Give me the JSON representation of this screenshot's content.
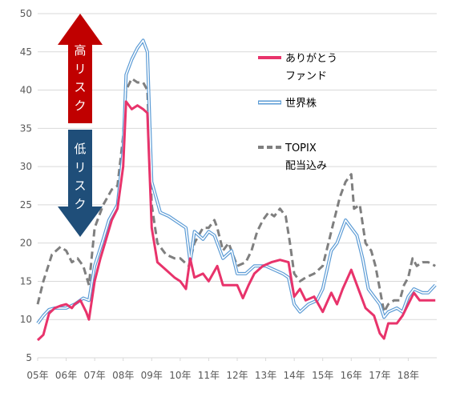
{
  "chart_data": {
    "type": "line",
    "ylim": [
      5,
      50
    ],
    "y_ticks": [
      5,
      10,
      15,
      20,
      25,
      30,
      35,
      40,
      45,
      50
    ],
    "x_tick_labels": [
      "05年",
      "06年",
      "07年",
      "08年",
      "09年",
      "10年",
      "11年",
      "12年",
      "13年",
      "14年",
      "15年",
      "16年",
      "17年",
      "18年"
    ],
    "grid": "horizontal",
    "legend_position": "right",
    "annotations": {
      "high_risk": "高リスク",
      "low_risk": "低リスク"
    },
    "series": [
      {
        "name": "ありがとうファンド",
        "legend_lines": [
          "ありがとう",
          "ファンド"
        ],
        "style": "solid",
        "color": "#e8336b",
        "points": [
          [
            2005.0,
            7.3
          ],
          [
            2005.2,
            8.0
          ],
          [
            2005.4,
            10.8
          ],
          [
            2005.6,
            11.5
          ],
          [
            2005.8,
            11.8
          ],
          [
            2006.0,
            12.0
          ],
          [
            2006.2,
            11.5
          ],
          [
            2006.3,
            12.0
          ],
          [
            2006.5,
            12.5
          ],
          [
            2006.7,
            11.0
          ],
          [
            2006.8,
            10.0
          ],
          [
            2007.0,
            15.0
          ],
          [
            2007.2,
            18.0
          ],
          [
            2007.4,
            20.5
          ],
          [
            2007.6,
            23.0
          ],
          [
            2007.8,
            24.5
          ],
          [
            2008.0,
            30.0
          ],
          [
            2008.1,
            38.5
          ],
          [
            2008.3,
            37.5
          ],
          [
            2008.5,
            38.0
          ],
          [
            2008.7,
            37.5
          ],
          [
            2008.85,
            37.0
          ],
          [
            2009.0,
            22.0
          ],
          [
            2009.2,
            17.5
          ],
          [
            2009.5,
            16.5
          ],
          [
            2009.8,
            15.5
          ],
          [
            2010.0,
            15.0
          ],
          [
            2010.2,
            14.0
          ],
          [
            2010.35,
            18.0
          ],
          [
            2010.5,
            15.5
          ],
          [
            2010.8,
            16.0
          ],
          [
            2011.0,
            15.0
          ],
          [
            2011.3,
            17.0
          ],
          [
            2011.5,
            14.5
          ],
          [
            2011.7,
            14.5
          ],
          [
            2012.0,
            14.5
          ],
          [
            2012.2,
            12.8
          ],
          [
            2012.4,
            14.5
          ],
          [
            2012.6,
            16.0
          ],
          [
            2012.9,
            17.0
          ],
          [
            2013.2,
            17.5
          ],
          [
            2013.5,
            17.8
          ],
          [
            2013.8,
            17.5
          ],
          [
            2014.0,
            13.0
          ],
          [
            2014.2,
            14.0
          ],
          [
            2014.4,
            12.5
          ],
          [
            2014.7,
            13.0
          ],
          [
            2015.0,
            11.0
          ],
          [
            2015.3,
            13.5
          ],
          [
            2015.5,
            12.0
          ],
          [
            2015.7,
            14.0
          ],
          [
            2016.0,
            16.5
          ],
          [
            2016.2,
            14.5
          ],
          [
            2016.5,
            11.5
          ],
          [
            2016.8,
            10.5
          ],
          [
            2017.0,
            8.2
          ],
          [
            2017.15,
            7.5
          ],
          [
            2017.3,
            9.5
          ],
          [
            2017.6,
            9.5
          ],
          [
            2017.8,
            10.5
          ],
          [
            2018.0,
            12.0
          ],
          [
            2018.2,
            13.5
          ],
          [
            2018.4,
            12.5
          ],
          [
            2018.7,
            12.5
          ],
          [
            2018.95,
            12.5
          ]
        ]
      },
      {
        "name": "世界株",
        "style": "double",
        "color": "#5b9bd5",
        "points": [
          [
            2005.0,
            9.5
          ],
          [
            2005.2,
            10.5
          ],
          [
            2005.4,
            11.3
          ],
          [
            2005.6,
            11.5
          ],
          [
            2005.8,
            11.5
          ],
          [
            2006.0,
            11.5
          ],
          [
            2006.3,
            12.0
          ],
          [
            2006.6,
            12.8
          ],
          [
            2006.8,
            12.5
          ],
          [
            2007.0,
            17.0
          ],
          [
            2007.3,
            20.5
          ],
          [
            2007.5,
            23.0
          ],
          [
            2007.8,
            25.0
          ],
          [
            2008.0,
            32.0
          ],
          [
            2008.1,
            42.0
          ],
          [
            2008.3,
            44.0
          ],
          [
            2008.5,
            45.5
          ],
          [
            2008.7,
            46.5
          ],
          [
            2008.85,
            45.0
          ],
          [
            2009.0,
            28.0
          ],
          [
            2009.3,
            24.0
          ],
          [
            2009.6,
            23.5
          ],
          [
            2009.8,
            23.0
          ],
          [
            2010.0,
            22.5
          ],
          [
            2010.2,
            22.0
          ],
          [
            2010.35,
            17.5
          ],
          [
            2010.5,
            21.5
          ],
          [
            2010.8,
            20.5
          ],
          [
            2011.0,
            21.5
          ],
          [
            2011.2,
            21.0
          ],
          [
            2011.5,
            18.0
          ],
          [
            2011.8,
            19.0
          ],
          [
            2012.0,
            16.0
          ],
          [
            2012.3,
            16.0
          ],
          [
            2012.6,
            17.0
          ],
          [
            2013.0,
            17.0
          ],
          [
            2013.3,
            16.5
          ],
          [
            2013.6,
            16.0
          ],
          [
            2013.8,
            15.5
          ],
          [
            2014.0,
            12.0
          ],
          [
            2014.2,
            11.0
          ],
          [
            2014.5,
            12.0
          ],
          [
            2014.8,
            12.5
          ],
          [
            2015.0,
            14.0
          ],
          [
            2015.3,
            19.0
          ],
          [
            2015.5,
            20.0
          ],
          [
            2015.7,
            22.0
          ],
          [
            2015.8,
            23.0
          ],
          [
            2016.0,
            22.0
          ],
          [
            2016.2,
            21.0
          ],
          [
            2016.4,
            18.0
          ],
          [
            2016.6,
            14.0
          ],
          [
            2016.8,
            13.0
          ],
          [
            2017.0,
            12.0
          ],
          [
            2017.15,
            10.3
          ],
          [
            2017.3,
            11.0
          ],
          [
            2017.6,
            11.5
          ],
          [
            2017.8,
            11.0
          ],
          [
            2018.0,
            13.0
          ],
          [
            2018.2,
            14.0
          ],
          [
            2018.5,
            13.5
          ],
          [
            2018.7,
            13.5
          ],
          [
            2018.95,
            14.5
          ]
        ]
      },
      {
        "name": "TOPIX 配当込み",
        "legend_lines": [
          "TOPIX",
          "配当込み"
        ],
        "style": "dashed",
        "color": "#7f7f7f",
        "points": [
          [
            2005.0,
            12.0
          ],
          [
            2005.2,
            15.0
          ],
          [
            2005.5,
            18.5
          ],
          [
            2005.8,
            19.5
          ],
          [
            2006.0,
            19.0
          ],
          [
            2006.2,
            17.5
          ],
          [
            2006.4,
            18.0
          ],
          [
            2006.6,
            17.0
          ],
          [
            2006.8,
            14.5
          ],
          [
            2007.0,
            22.0
          ],
          [
            2007.3,
            25.0
          ],
          [
            2007.6,
            27.0
          ],
          [
            2007.8,
            27.5
          ],
          [
            2008.0,
            34.0
          ],
          [
            2008.1,
            40.0
          ],
          [
            2008.3,
            41.5
          ],
          [
            2008.5,
            41.0
          ],
          [
            2008.7,
            41.0
          ],
          [
            2008.85,
            40.0
          ],
          [
            2009.0,
            25.0
          ],
          [
            2009.2,
            20.0
          ],
          [
            2009.5,
            18.5
          ],
          [
            2009.8,
            18.0
          ],
          [
            2010.0,
            18.0
          ],
          [
            2010.3,
            17.0
          ],
          [
            2010.5,
            20.0
          ],
          [
            2010.8,
            22.0
          ],
          [
            2011.0,
            22.0
          ],
          [
            2011.2,
            23.0
          ],
          [
            2011.3,
            22.0
          ],
          [
            2011.5,
            19.0
          ],
          [
            2011.7,
            20.0
          ],
          [
            2012.0,
            17.0
          ],
          [
            2012.3,
            17.5
          ],
          [
            2012.5,
            19.0
          ],
          [
            2012.7,
            21.5
          ],
          [
            2012.9,
            23.0
          ],
          [
            2013.1,
            24.0
          ],
          [
            2013.3,
            23.5
          ],
          [
            2013.5,
            24.5
          ],
          [
            2013.7,
            23.5
          ],
          [
            2013.85,
            20.0
          ],
          [
            2014.0,
            16.0
          ],
          [
            2014.2,
            15.0
          ],
          [
            2014.4,
            15.5
          ],
          [
            2014.7,
            16.0
          ],
          [
            2015.0,
            17.0
          ],
          [
            2015.2,
            20.0
          ],
          [
            2015.4,
            23.0
          ],
          [
            2015.6,
            26.0
          ],
          [
            2015.8,
            28.0
          ],
          [
            2016.0,
            29.0
          ],
          [
            2016.1,
            24.5
          ],
          [
            2016.3,
            25.0
          ],
          [
            2016.5,
            20.0
          ],
          [
            2016.7,
            19.0
          ],
          [
            2016.85,
            17.0
          ],
          [
            2017.0,
            14.0
          ],
          [
            2017.15,
            11.0
          ],
          [
            2017.3,
            12.0
          ],
          [
            2017.5,
            12.5
          ],
          [
            2017.7,
            12.5
          ],
          [
            2017.85,
            14.5
          ],
          [
            2018.0,
            15.5
          ],
          [
            2018.15,
            18.0
          ],
          [
            2018.3,
            17.0
          ],
          [
            2018.5,
            17.5
          ],
          [
            2018.7,
            17.5
          ],
          [
            2018.95,
            17.0
          ]
        ]
      }
    ]
  }
}
